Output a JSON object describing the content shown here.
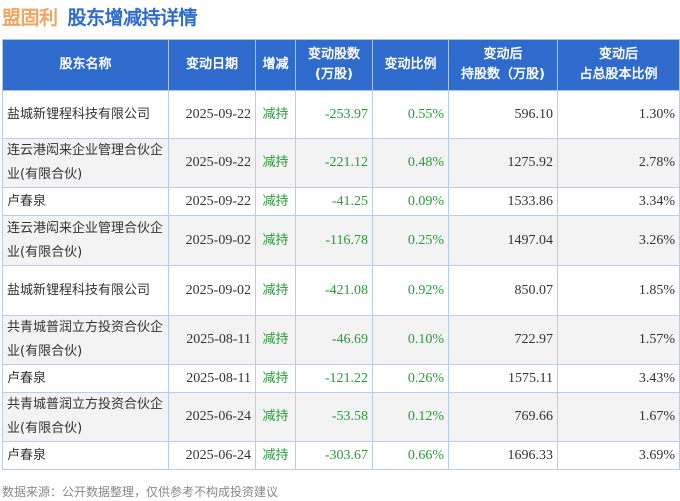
{
  "header": {
    "company": "盟固利",
    "title": "股东增减持详情"
  },
  "columns": [
    "股东名称",
    "变动日期",
    "增减",
    "变动股数\n(万股)",
    "变动比例",
    "变动后\n持股数（万股)",
    "变动后\n占总股本比例"
  ],
  "rows": [
    {
      "name": "盐城新锂程科技有限公司",
      "date": "2025-09-22",
      "type": "减持",
      "shares": "-253.97",
      "ratio": "0.55%",
      "after": "596.10",
      "pct": "1.30%"
    },
    {
      "name": "连云港闳来企业管理合伙企业(有限合伙)",
      "date": "2025-09-22",
      "type": "减持",
      "shares": "-221.12",
      "ratio": "0.48%",
      "after": "1275.92",
      "pct": "2.78%"
    },
    {
      "name": "卢春泉",
      "date": "2025-09-22",
      "type": "减持",
      "shares": "-41.25",
      "ratio": "0.09%",
      "after": "1533.86",
      "pct": "3.34%"
    },
    {
      "name": "连云港闳来企业管理合伙企业(有限合伙)",
      "date": "2025-09-02",
      "type": "减持",
      "shares": "-116.78",
      "ratio": "0.25%",
      "after": "1497.04",
      "pct": "3.26%"
    },
    {
      "name": "盐城新锂程科技有限公司",
      "date": "2025-09-02",
      "type": "减持",
      "shares": "-421.08",
      "ratio": "0.92%",
      "after": "850.07",
      "pct": "1.85%"
    },
    {
      "name": "共青城普润立方投资合伙企业(有限合伙)",
      "date": "2025-08-11",
      "type": "减持",
      "shares": "-46.69",
      "ratio": "0.10%",
      "after": "722.97",
      "pct": "1.57%"
    },
    {
      "name": "卢春泉",
      "date": "2025-08-11",
      "type": "减持",
      "shares": "-121.22",
      "ratio": "0.26%",
      "after": "1575.11",
      "pct": "3.43%"
    },
    {
      "name": "共青城普润立方投资合伙企业(有限合伙)",
      "date": "2025-06-24",
      "type": "减持",
      "shares": "-53.58",
      "ratio": "0.12%",
      "after": "769.66",
      "pct": "1.67%"
    },
    {
      "name": "卢春泉",
      "date": "2025-06-24",
      "type": "减持",
      "shares": "-303.67",
      "ratio": "0.66%",
      "after": "1696.33",
      "pct": "3.69%"
    }
  ],
  "footer": "数据来源：公开数据整理，仅供参考不构成投资建议",
  "colors": {
    "header_bg": "#2f6bcc",
    "company": "#f4a461",
    "title": "#2d6bcd",
    "decrease": "#2a9a3a"
  }
}
